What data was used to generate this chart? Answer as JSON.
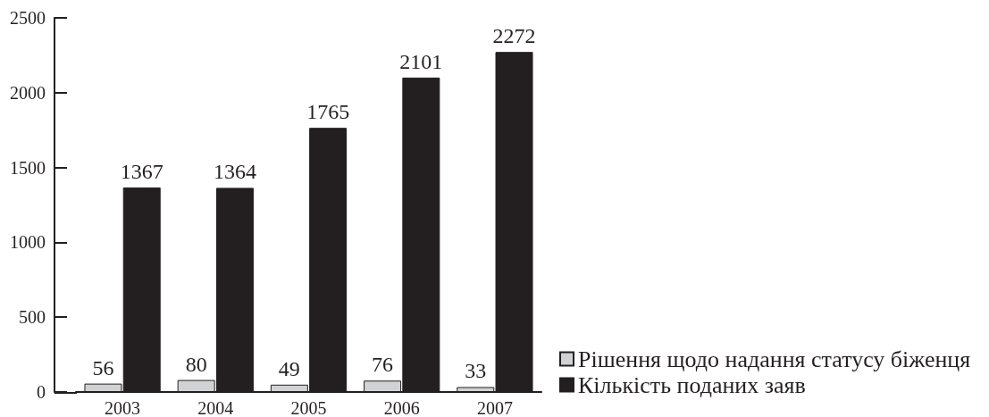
{
  "chart_data": {
    "type": "bar",
    "categories": [
      "2003",
      "2004",
      "2005",
      "2006",
      "2007"
    ],
    "series": [
      {
        "name": "Рішення щодо надання статусу біженця",
        "color": "#d1d2d4",
        "values": [
          56,
          80,
          49,
          76,
          33
        ]
      },
      {
        "name": "Кількість поданих заяв",
        "color": "#231f20",
        "values": [
          1367,
          1364,
          1765,
          2101,
          2272
        ]
      }
    ],
    "ylim": [
      0,
      2500
    ],
    "yticks": [
      0,
      500,
      1000,
      1500,
      2000,
      2500
    ],
    "legend": "bottom right",
    "data_labels": true
  }
}
